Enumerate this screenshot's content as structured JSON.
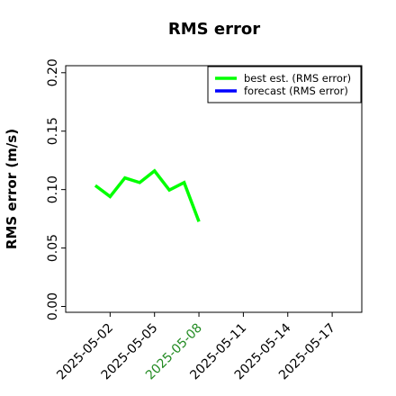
{
  "chart_data": {
    "type": "line",
    "title": "RMS error",
    "ylabel": "RMS error (m/s)",
    "x": [
      "2025-05-01",
      "2025-05-02",
      "2025-05-03",
      "2025-05-04",
      "2025-05-05",
      "2025-05-06",
      "2025-05-07",
      "2025-05-08"
    ],
    "series": [
      {
        "name": "best est. (RMS error)",
        "color": "#00ff00",
        "values": [
          0.1035,
          0.094,
          0.11,
          0.106,
          0.116,
          0.0996,
          0.106,
          0.0726
        ]
      },
      {
        "name": "forecast (RMS error)",
        "color": "#0000ff",
        "values": [
          null,
          null,
          null,
          null,
          null,
          null,
          null,
          null
        ]
      }
    ],
    "xlim": [
      "2025-04-29",
      "2025-05-19"
    ],
    "xticks": [
      "2025-05-02",
      "2025-05-05",
      "2025-05-08",
      "2025-05-11",
      "2025-05-14",
      "2025-05-17"
    ],
    "xtick_highlight": {
      "index": 2,
      "color": "#228b22"
    },
    "ylim": [
      -0.005,
      0.206
    ],
    "yticks": [
      {
        "value": 0,
        "label": "0.00"
      },
      {
        "value": 0.05,
        "label": "0.05"
      },
      {
        "value": 0.1,
        "label": "0.10"
      },
      {
        "value": 0.15,
        "label": "0.15"
      },
      {
        "value": 0.2,
        "label": "0.20"
      }
    ],
    "legend": "upper right",
    "grid": false
  }
}
